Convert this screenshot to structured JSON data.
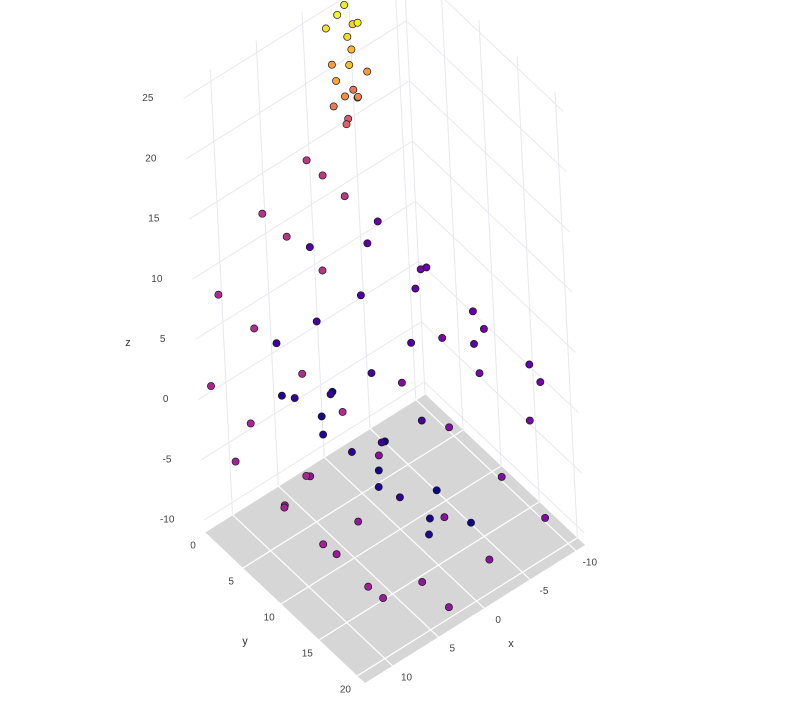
{
  "chart_data": {
    "type": "scatter3d",
    "x_label": "x",
    "y_label": "y",
    "z_label": "z",
    "xlim": [
      -11,
      13
    ],
    "ylim": [
      0,
      21
    ],
    "zlim": [
      -11,
      26
    ],
    "xticks": [
      -10,
      -5,
      0,
      5,
      10
    ],
    "yticks": [
      0,
      5,
      10,
      15,
      20
    ],
    "zticks": [
      -10,
      -5,
      0,
      5,
      10,
      15,
      20,
      25
    ],
    "grid": true,
    "floor_color": "#d6d6d6",
    "colorscale": [
      "#0d0887",
      "#6a00a8",
      "#b12a90",
      "#e16462",
      "#fca636",
      "#f0f921"
    ],
    "x": [
      -0.06,
      -0.06,
      -0.06,
      -0.06,
      2.43,
      2.43,
      2.43,
      4.76,
      4.76,
      4.76,
      4.76,
      6.18,
      6.18,
      6.18,
      6.13,
      6.13,
      6.13,
      4.38,
      4.38,
      4.38,
      1.18,
      1.18,
      1.18,
      -2.78,
      -2.78,
      -2.78,
      -6.52,
      -6.52,
      -6.52,
      -6.52,
      -8.97,
      -8.97,
      -8.97,
      -9.35,
      -9.35,
      -9.35,
      -7.23,
      -7.23,
      -7.23,
      -7.23,
      -3.11,
      -3.11,
      -3.11,
      2.27,
      2.27,
      2.27,
      2.27,
      7.57,
      7.57,
      7.57,
      11.39,
      11.39,
      11.39,
      11.39,
      12.59,
      12.59,
      12.59,
      10.64,
      10.64,
      10.64,
      10.64,
      5.8,
      5.8,
      5.8,
      0.52,
      0.52,
      0.52,
      -3.4,
      -2.2,
      -4.4,
      -1.4,
      -3.1,
      -4.9,
      -2.5,
      -1.1,
      -3.8,
      -2.1,
      -4.6,
      -2.9,
      -1.6,
      -3.6,
      -2.4,
      -4.2,
      -1.8,
      -3.9
    ],
    "y": [
      1.5,
      8.4,
      15.2,
      19.7,
      3.1,
      10.6,
      17.3,
      0.8,
      6.2,
      13.5,
      20.1,
      4.4,
      11.9,
      18.2,
      2.2,
      9.3,
      16.0,
      5.6,
      12.8,
      19.4,
      1.0,
      7.7,
      14.3,
      3.8,
      10.1,
      17.8,
      0.5,
      6.9,
      13.0,
      20.4,
      2.9,
      11.2,
      18.6,
      4.9,
      9.8,
      16.4,
      1.8,
      8.0,
      14.9,
      20.6,
      3.5,
      12.1,
      18.0,
      0.9,
      7.2,
      15.6,
      19.1,
      4.1,
      10.9,
      17.0,
      2.6,
      9.0,
      14.1,
      20.0,
      1.3,
      6.5,
      13.8,
      0.4,
      5.1,
      11.4,
      16.7,
      0.7,
      3.9,
      8.6,
      0.3,
      2.4,
      5.3,
      1.2,
      2.5,
      0.8,
      1.9,
      3.1,
      2.2,
      0.5,
      2.8,
      1.6,
      3.4,
      0.9,
      2.3,
      1.1,
      2.9,
      1.7,
      0.4,
      3.0,
      2.0
    ],
    "z": [
      -4.7,
      -4.7,
      -4.7,
      -4.7,
      -4.6,
      -4.6,
      -4.6,
      -3.14,
      -3.14,
      -3.14,
      -3.14,
      -0.51,
      -0.51,
      -0.51,
      2.71,
      2.71,
      2.71,
      5.72,
      5.72,
      5.72,
      7.61,
      7.61,
      7.61,
      7.71,
      7.71,
      7.71,
      5.77,
      5.77,
      5.77,
      5.77,
      2.06,
      2.06,
      2.06,
      -2.63,
      -2.63,
      -2.63,
      -7.19,
      -7.19,
      -7.19,
      -7.19,
      -10.24,
      -10.24,
      -10.24,
      -10.96,
      -10.96,
      -10.96,
      -10.96,
      -8.93,
      -8.93,
      -8.93,
      -4.37,
      -4.37,
      -4.37,
      -4.37,
      1.7,
      1.7,
      1.7,
      7.82,
      7.82,
      7.82,
      7.82,
      12.41,
      12.41,
      12.41,
      14.09,
      14.09,
      14.09,
      16.2,
      17.1,
      17.9,
      18.6,
      19.3,
      20.0,
      20.7,
      21.4,
      22.0,
      22.6,
      23.3,
      23.9,
      24.5,
      25.1,
      25.6,
      24.8,
      19.9,
      18.2
    ]
  }
}
